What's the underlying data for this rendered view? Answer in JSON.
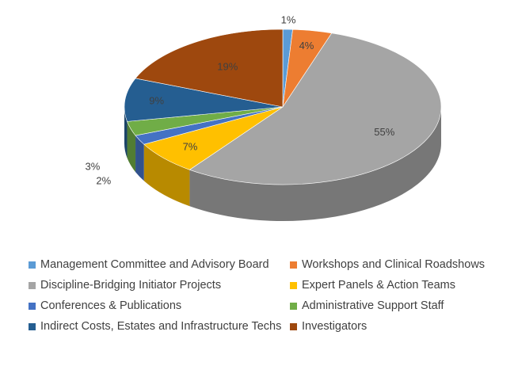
{
  "chart_data": {
    "type": "pie",
    "title": "",
    "legend_position": "bottom",
    "slices": [
      {
        "name": "Management Committee and Advisory Board",
        "value": 1,
        "label": "1%",
        "color": "#5b9bd5"
      },
      {
        "name": "Workshops and Clinical Roadshows",
        "value": 4,
        "label": "4%",
        "color": "#ed7d31"
      },
      {
        "name": "Discipline-Bridging Initiator Projects",
        "value": 55,
        "label": "55%",
        "color": "#a5a5a5"
      },
      {
        "name": "Expert Panels & Action Teams",
        "value": 7,
        "label": "7%",
        "color": "#ffc000"
      },
      {
        "name": "Conferences & Publications",
        "value": 2,
        "label": "2%",
        "color": "#4472c4"
      },
      {
        "name": "Administrative Support Staff",
        "value": 3,
        "label": "3%",
        "color": "#70ad47"
      },
      {
        "name": "Indirect Costs, Estates and Infrastructure Techs",
        "value": 9,
        "label": "9%",
        "color": "#255e91"
      },
      {
        "name": "Investigators",
        "value": 19,
        "label": "19%",
        "color": "#9e480e"
      }
    ]
  }
}
